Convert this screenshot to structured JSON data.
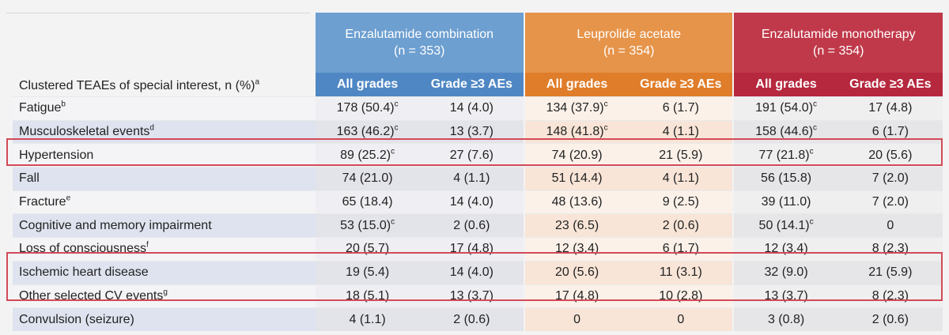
{
  "groups": [
    {
      "name": "Enzalutamide combination",
      "n": "(n = 353)"
    },
    {
      "name": "Leuprolide acetate",
      "n": "(n = 354)"
    },
    {
      "name": "Enzalutamide monotherapy",
      "n": "(n = 354)"
    }
  ],
  "header_label": {
    "text": "Clustered TEAEs of special interest, n (%)",
    "sup": "a"
  },
  "sub_headers": [
    "All grades",
    "Grade ≥3 AEs"
  ],
  "rows": [
    {
      "label": "Fatigue",
      "sup": "b",
      "cells": [
        {
          "v": "178 (50.4)",
          "s": "c"
        },
        {
          "v": "14 (4.0)",
          "s": ""
        },
        {
          "v": "134 (37.9)",
          "s": "c"
        },
        {
          "v": "6 (1.7)",
          "s": ""
        },
        {
          "v": "191 (54.0)",
          "s": "c"
        },
        {
          "v": "17 (4.8)",
          "s": ""
        }
      ]
    },
    {
      "label": "Musculoskeletal events",
      "sup": "d",
      "cells": [
        {
          "v": "163 (46.2)",
          "s": "c"
        },
        {
          "v": "13 (3.7)",
          "s": ""
        },
        {
          "v": "148 (41.8)",
          "s": "c"
        },
        {
          "v": "4 (1.1)",
          "s": ""
        },
        {
          "v": "158 (44.6)",
          "s": "c"
        },
        {
          "v": "6 (1.7)",
          "s": ""
        }
      ]
    },
    {
      "label": "Hypertension",
      "sup": "",
      "cells": [
        {
          "v": "89 (25.2)",
          "s": "c"
        },
        {
          "v": "27 (7.6)",
          "s": ""
        },
        {
          "v": "74 (20.9)",
          "s": ""
        },
        {
          "v": "21 (5.9)",
          "s": ""
        },
        {
          "v": "77 (21.8)",
          "s": "c"
        },
        {
          "v": "20 (5.6)",
          "s": ""
        }
      ]
    },
    {
      "label": "Fall",
      "sup": "",
      "cells": [
        {
          "v": "74 (21.0)",
          "s": ""
        },
        {
          "v": "4 (1.1)",
          "s": ""
        },
        {
          "v": "51 (14.4)",
          "s": ""
        },
        {
          "v": "4 (1.1)",
          "s": ""
        },
        {
          "v": "56 (15.8)",
          "s": ""
        },
        {
          "v": "7 (2.0)",
          "s": ""
        }
      ]
    },
    {
      "label": "Fracture",
      "sup": "e",
      "cells": [
        {
          "v": "65 (18.4)",
          "s": ""
        },
        {
          "v": "14 (4.0)",
          "s": ""
        },
        {
          "v": "48 (13.6)",
          "s": ""
        },
        {
          "v": "9 (2.5)",
          "s": ""
        },
        {
          "v": "39 (11.0)",
          "s": ""
        },
        {
          "v": "7 (2.0)",
          "s": ""
        }
      ]
    },
    {
      "label": "Cognitive and memory impairment",
      "sup": "",
      "cells": [
        {
          "v": "53 (15.0)",
          "s": "c"
        },
        {
          "v": "2 (0.6)",
          "s": ""
        },
        {
          "v": "23 (6.5)",
          "s": ""
        },
        {
          "v": "2 (0.6)",
          "s": ""
        },
        {
          "v": "50 (14.1)",
          "s": "c"
        },
        {
          "v": "0",
          "s": ""
        }
      ]
    },
    {
      "label": "Loss of consciousness",
      "sup": "f",
      "cells": [
        {
          "v": "20 (5.7)",
          "s": ""
        },
        {
          "v": "17 (4.8)",
          "s": ""
        },
        {
          "v": "12 (3.4)",
          "s": ""
        },
        {
          "v": "6 (1.7)",
          "s": ""
        },
        {
          "v": "12 (3.4)",
          "s": ""
        },
        {
          "v": "8 (2.3)",
          "s": ""
        }
      ]
    },
    {
      "label": "Ischemic heart disease",
      "sup": "",
      "cells": [
        {
          "v": "19 (5.4)",
          "s": ""
        },
        {
          "v": "14 (4.0)",
          "s": ""
        },
        {
          "v": "20 (5.6)",
          "s": ""
        },
        {
          "v": "11 (3.1)",
          "s": ""
        },
        {
          "v": "32 (9.0)",
          "s": ""
        },
        {
          "v": "21 (5.9)",
          "s": ""
        }
      ]
    },
    {
      "label": "Other selected CV events",
      "sup": "g",
      "cells": [
        {
          "v": "18 (5.1)",
          "s": ""
        },
        {
          "v": "13 (3.7)",
          "s": ""
        },
        {
          "v": "17 (4.8)",
          "s": ""
        },
        {
          "v": "10 (2.8)",
          "s": ""
        },
        {
          "v": "13 (3.7)",
          "s": ""
        },
        {
          "v": "8 (2.3)",
          "s": ""
        }
      ]
    },
    {
      "label": "Convulsion (seizure)",
      "sup": "",
      "cells": [
        {
          "v": "4 (1.1)",
          "s": ""
        },
        {
          "v": "2 (0.6)",
          "s": ""
        },
        {
          "v": "0",
          "s": ""
        },
        {
          "v": "0",
          "s": ""
        },
        {
          "v": "3 (0.8)",
          "s": ""
        },
        {
          "v": "2 (0.6)",
          "s": ""
        }
      ]
    }
  ],
  "highlight_color": "#d24a58",
  "colors": {
    "enzalutamide_combination": "#6d9fd0",
    "leuprolide_acetate": "#e6944a",
    "enzalutamide_monotherapy": "#c0394a"
  }
}
